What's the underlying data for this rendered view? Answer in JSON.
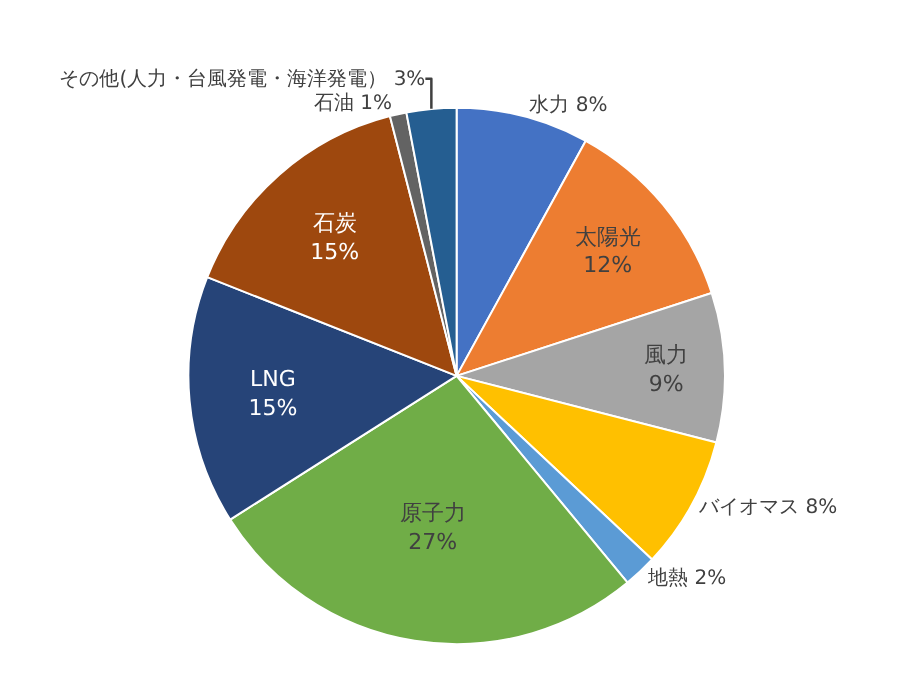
{
  "chart_data": {
    "type": "pie",
    "categories": [
      "水力",
      "太陽光",
      "風力",
      "バイオマス",
      "地熱",
      "原子力",
      "LNG",
      "石炭",
      "石油",
      "その他(人力・台風発電・海洋発電）"
    ],
    "values": [
      8,
      12,
      9,
      8,
      2,
      27,
      15,
      15,
      1,
      3
    ],
    "value_labels": [
      "8%",
      "12%",
      "9%",
      "8%",
      "2%",
      "27%",
      "15%",
      "15%",
      "1%",
      "3%"
    ],
    "colors": [
      "#4472c4",
      "#ed7d31",
      "#a5a5a5",
      "#ffc000",
      "#5b9bd5",
      "#70ad47",
      "#264478",
      "#9e480e",
      "#636363",
      "#255e91"
    ],
    "legend": false
  }
}
